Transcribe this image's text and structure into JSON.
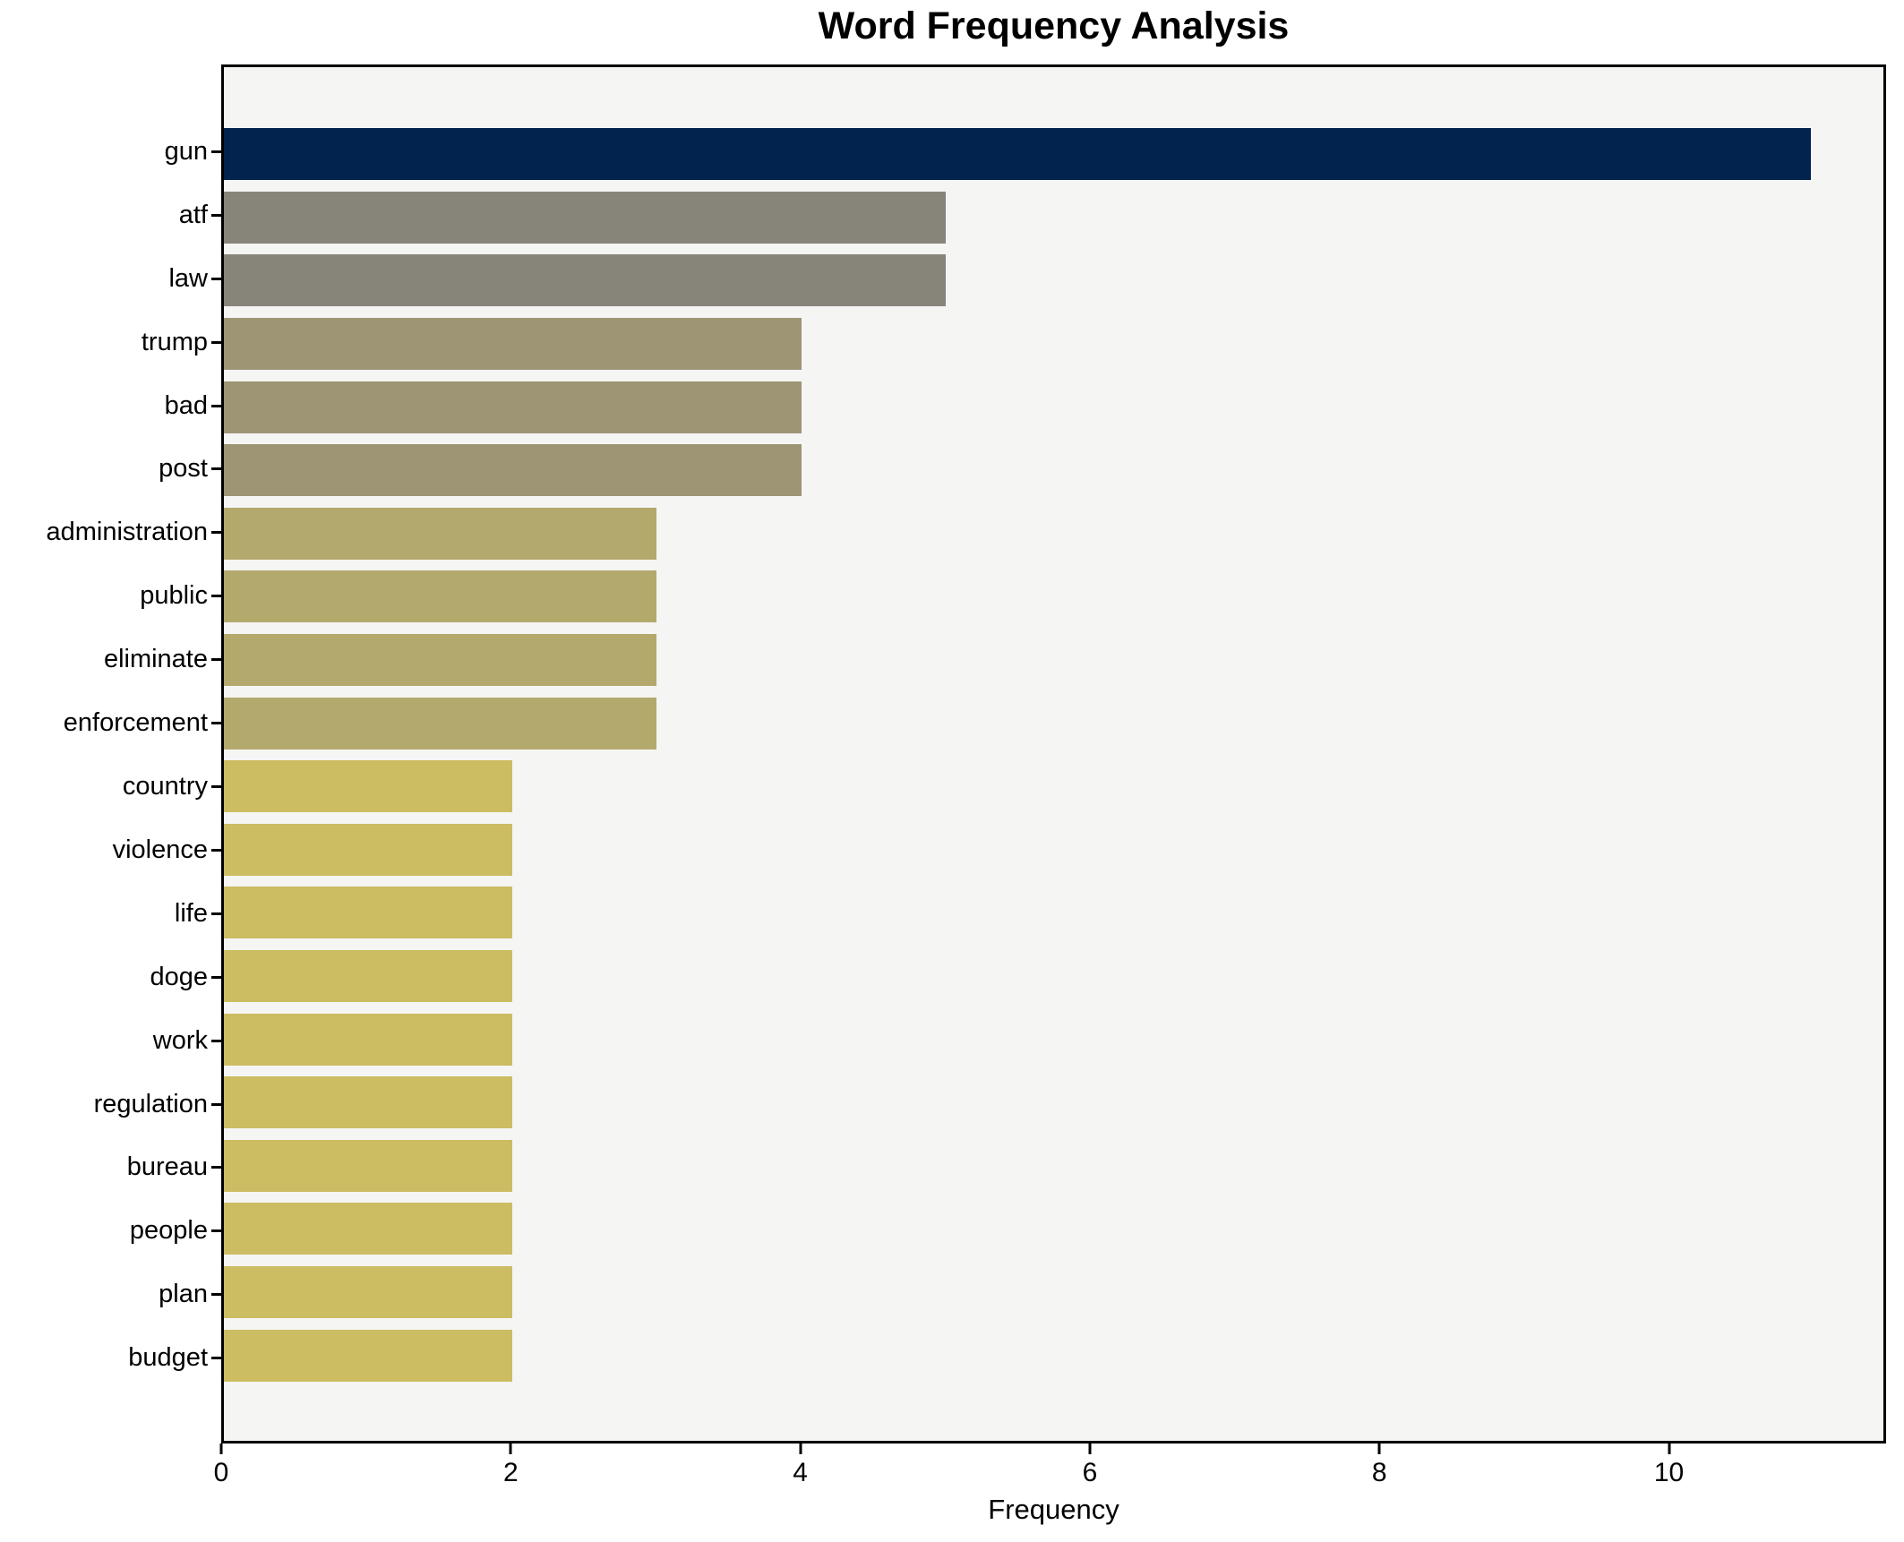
{
  "chart_data": {
    "type": "bar",
    "orientation": "horizontal",
    "title": "Word Frequency Analysis",
    "xlabel": "Frequency",
    "ylabel": "",
    "categories": [
      "gun",
      "atf",
      "law",
      "trump",
      "bad",
      "post",
      "administration",
      "public",
      "eliminate",
      "enforcement",
      "country",
      "violence",
      "life",
      "doge",
      "work",
      "regulation",
      "bureau",
      "people",
      "plan",
      "budget"
    ],
    "values": [
      11,
      5,
      5,
      4,
      4,
      4,
      3,
      3,
      3,
      3,
      2,
      2,
      2,
      2,
      2,
      2,
      2,
      2,
      2,
      2
    ],
    "bar_colors": [
      "#02234e",
      "#87847a",
      "#87847a",
      "#9e9574",
      "#9e9574",
      "#9e9574",
      "#b4a96d",
      "#b4a96d",
      "#b4a96d",
      "#b4a96d",
      "#ccbc62",
      "#ccbc62",
      "#ccbc62",
      "#ccbc62",
      "#ccbc62",
      "#ccbc62",
      "#ccbc62",
      "#ccbc62",
      "#ccbc62",
      "#ccbc62"
    ],
    "xticks": [
      0,
      2,
      4,
      6,
      8,
      10
    ],
    "xlim": [
      0,
      11.5
    ],
    "grid": false,
    "legend": false,
    "plot_background": "#f5f5f4",
    "figure_background": "#ffffff",
    "spine_color": "#000000"
  }
}
